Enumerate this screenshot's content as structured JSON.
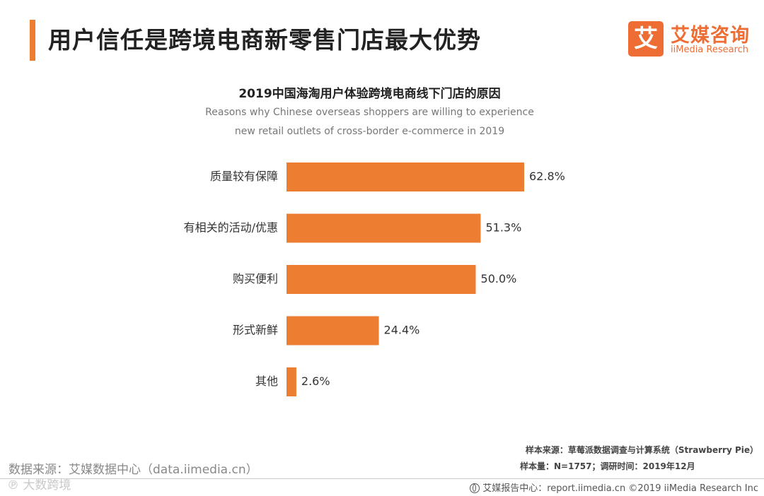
{
  "header": {
    "title": "用户信任是跨境电商新零售门店最大优势",
    "logo_mark": "艾",
    "logo_cn": "艾媒咨询",
    "logo_en": "iiMedia Research"
  },
  "chart_data": {
    "type": "bar",
    "orientation": "horizontal",
    "title": "2019中国海淘用户体验跨境电商线下门店的原因",
    "subtitle_line1": "Reasons why Chinese overseas shoppers are willing to experience",
    "subtitle_line2": "new retail outlets of cross-border e-commerce in 2019",
    "categories": [
      "质量较有保障",
      "有相关的活动/优惠",
      "购买便利",
      "形式新鲜",
      "其他"
    ],
    "values": [
      62.8,
      51.3,
      50.0,
      24.4,
      2.6
    ],
    "labels": [
      "62.8%",
      "51.3%",
      "50.0%",
      "24.4%",
      "2.6%"
    ],
    "unit": "%",
    "xlim": [
      0,
      62.8
    ],
    "bar_color": "#ed7d31"
  },
  "footer": {
    "data_source": "数据来源：艾媒数据中心（data.iimedia.cn）",
    "watermark": "℗ 大数跨境",
    "sample_source": "样本来源：草莓派数据调查与计算系统（Strawberry Pie）",
    "sample_size": "样本量：N=1757；调研时间：2019年12月",
    "report_center": "艾媒报告中心：report.iimedia.cn  ©2019  iiMedia Research  Inc"
  }
}
